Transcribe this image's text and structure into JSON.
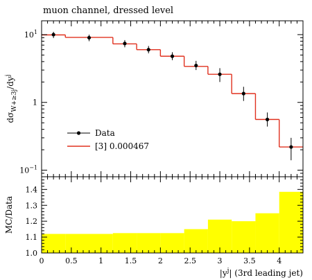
{
  "chart_data": [
    {
      "type": "step",
      "title": "muon channel, dressed level",
      "ylabel_main": "dσ",
      "ylabel_sub": "W+≥3j",
      "ylabel_tail": "/dy",
      "ylabel_sup": "j",
      "yscale": "log",
      "ylim": [
        0.08,
        16
      ],
      "xlim": [
        0,
        4.4
      ],
      "yticks": [
        0.1,
        1,
        10
      ],
      "ytick_labels": [
        {
          "base": "10",
          "exp": "−1"
        },
        {
          "base": "1",
          "exp": ""
        },
        {
          "base": "10",
          "exp": "1"
        }
      ],
      "legend_placement": "lower-left",
      "bin_edges": [
        0,
        0.4,
        1.2,
        1.6,
        2.0,
        2.4,
        2.8,
        3.2,
        3.6,
        4.0,
        4.4
      ],
      "series": [
        {
          "name": "Data",
          "x": [
            0.2,
            0.8,
            1.4,
            1.8,
            2.2,
            2.6,
            3.0,
            3.4,
            3.8,
            4.2
          ],
          "y": [
            10.0,
            9.0,
            7.4,
            6.0,
            4.8,
            3.5,
            2.6,
            1.35,
            0.56,
            0.22
          ],
          "yerr_low": [
            8.9,
            8.0,
            6.5,
            5.3,
            4.2,
            3.0,
            2.0,
            1.05,
            0.44,
            0.14
          ],
          "yerr_high": [
            11.0,
            10.0,
            8.3,
            6.8,
            5.5,
            4.1,
            3.2,
            1.7,
            0.71,
            0.3
          ]
        },
        {
          "name": "[3] 0.000467",
          "values": [
            9.9,
            9.1,
            7.3,
            6.0,
            4.8,
            3.4,
            2.6,
            1.35,
            0.56,
            0.22
          ],
          "color": "#e0301e"
        }
      ]
    },
    {
      "type": "ratio-band",
      "ylabel": "MC/Data",
      "xlabel": "|y",
      "xlabel_sup": "j",
      "xlabel_tail": "| (3rd leading jet)",
      "ylim": [
        1.0,
        1.48
      ],
      "yticks": [
        1.0,
        1.1,
        1.2,
        1.3,
        1.4
      ],
      "ytick_labels": [
        "1.0",
        "1.1",
        "1.2",
        "1.3",
        "1.4"
      ],
      "xticks": [
        0,
        0.5,
        1,
        1.5,
        2,
        2.5,
        3,
        3.5,
        4
      ],
      "xtick_labels": [
        "0",
        "0.5",
        "1",
        "1.5",
        "2",
        "2.5",
        "3",
        "3.5",
        "4"
      ],
      "bin_edges": [
        0,
        0.4,
        1.2,
        1.6,
        2.0,
        2.4,
        2.8,
        3.2,
        3.6,
        4.0,
        4.4
      ],
      "values": [
        1.12,
        1.12,
        1.125,
        1.125,
        1.125,
        1.15,
        1.21,
        1.2,
        1.25,
        1.385
      ],
      "color": "#ffff00"
    }
  ]
}
